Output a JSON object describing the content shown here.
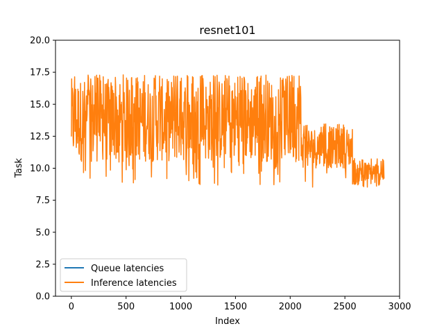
{
  "chart_data": {
    "type": "line",
    "title": "resnet101",
    "xlabel": "Index",
    "ylabel": "Task",
    "xlim": [
      -145,
      3000
    ],
    "ylim": [
      0,
      20
    ],
    "xticks": [
      0,
      500,
      1000,
      1500,
      2000,
      2500,
      3000
    ],
    "xtick_labels": [
      "0",
      "500",
      "1000",
      "1500",
      "2000",
      "2500",
      "3000"
    ],
    "yticks": [
      0,
      2.5,
      5,
      7.5,
      10,
      12.5,
      15,
      17.5,
      20
    ],
    "ytick_labels": [
      "0.0",
      "2.5",
      "5.0",
      "7.5",
      "10.0",
      "12.5",
      "15.0",
      "17.5",
      "20.0"
    ],
    "grid": false,
    "legend": {
      "placement": "lower-left",
      "entries": [
        "Queue latencies",
        "Inference latencies"
      ]
    },
    "series": [
      {
        "name": "Queue latencies",
        "color": "#1f77b4",
        "segments": []
      },
      {
        "name": "Inference latencies",
        "color": "#ff7f0e",
        "segments": [
          {
            "x_range": [
              0,
              2100
            ],
            "min": 8.6,
            "max": 17.3,
            "typical_low": 10.5,
            "typical_high": 17.0
          },
          {
            "x_range": [
              2100,
              2570
            ],
            "min": 8.5,
            "max": 13.5,
            "typical_low": 10.0,
            "typical_high": 13.2
          },
          {
            "x_range": [
              2570,
              2860
            ],
            "min": 8.5,
            "max": 10.8,
            "typical_low": 8.7,
            "typical_high": 10.5
          }
        ]
      }
    ]
  }
}
